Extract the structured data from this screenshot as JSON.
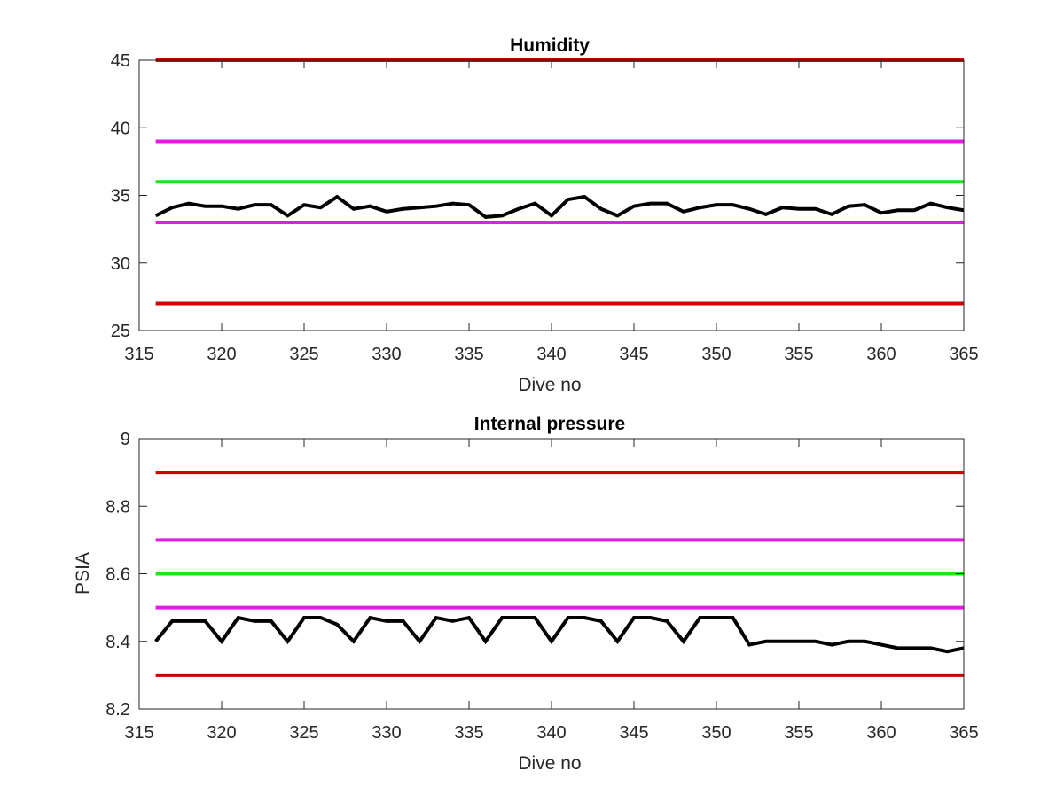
{
  "chart_data": [
    {
      "type": "line",
      "title": "Humidity",
      "xlabel": "Dive no",
      "ylabel": "",
      "xlim": [
        316,
        365
      ],
      "ylim": [
        25,
        45
      ],
      "xticks": [
        315,
        320,
        325,
        330,
        335,
        340,
        345,
        350,
        355,
        360,
        365
      ],
      "yticks": [
        25,
        30,
        35,
        40,
        45
      ],
      "grid": false,
      "x": [
        316,
        317,
        318,
        319,
        320,
        321,
        322,
        323,
        324,
        325,
        326,
        327,
        328,
        329,
        330,
        331,
        332,
        333,
        334,
        335,
        336,
        337,
        338,
        339,
        340,
        341,
        342,
        343,
        344,
        345,
        346,
        347,
        348,
        349,
        350,
        351,
        352,
        353,
        354,
        355,
        356,
        357,
        358,
        359,
        360,
        361,
        362,
        363,
        364,
        365
      ],
      "series": [
        {
          "color": "#000000",
          "values": [
            33.5,
            34.1,
            34.4,
            34.2,
            34.2,
            34.0,
            34.3,
            34.3,
            33.5,
            34.3,
            34.1,
            34.9,
            34.0,
            34.2,
            33.8,
            34.0,
            34.1,
            34.2,
            34.4,
            34.3,
            33.4,
            33.5,
            34.0,
            34.4,
            33.5,
            34.7,
            34.9,
            34.0,
            33.5,
            34.2,
            34.4,
            34.4,
            33.8,
            34.1,
            34.3,
            34.3,
            34.0,
            33.6,
            34.1,
            34.0,
            34.0,
            33.6,
            34.2,
            34.3,
            33.7,
            33.9,
            33.9,
            34.4,
            34.1,
            33.9
          ]
        }
      ],
      "reference_lines": [
        {
          "value": 45,
          "color": "#cc0000"
        },
        {
          "value": 39,
          "color": "#e619e6"
        },
        {
          "value": 36,
          "color": "#1ae61a"
        },
        {
          "value": 33,
          "color": "#e619e6"
        },
        {
          "value": 27,
          "color": "#cc0000"
        }
      ]
    },
    {
      "type": "line",
      "title": "Internal pressure",
      "xlabel": "Dive no",
      "ylabel": "PSIA",
      "xlim": [
        316,
        365
      ],
      "ylim": [
        8.2,
        9
      ],
      "xticks": [
        315,
        320,
        325,
        330,
        335,
        340,
        345,
        350,
        355,
        360,
        365
      ],
      "yticks": [
        8.2,
        8.4,
        8.6,
        8.8,
        9
      ],
      "grid": false,
      "x": [
        316,
        317,
        318,
        319,
        320,
        321,
        322,
        323,
        324,
        325,
        326,
        327,
        328,
        329,
        330,
        331,
        332,
        333,
        334,
        335,
        336,
        337,
        338,
        339,
        340,
        341,
        342,
        343,
        344,
        345,
        346,
        347,
        348,
        349,
        350,
        351,
        352,
        353,
        354,
        355,
        356,
        357,
        358,
        359,
        360,
        361,
        362,
        363,
        364,
        365
      ],
      "series": [
        {
          "color": "#000000",
          "values": [
            8.4,
            8.46,
            8.46,
            8.46,
            8.4,
            8.47,
            8.46,
            8.46,
            8.4,
            8.47,
            8.47,
            8.45,
            8.4,
            8.47,
            8.46,
            8.46,
            8.4,
            8.47,
            8.46,
            8.47,
            8.4,
            8.47,
            8.47,
            8.47,
            8.4,
            8.47,
            8.47,
            8.46,
            8.4,
            8.47,
            8.47,
            8.46,
            8.4,
            8.47,
            8.47,
            8.47,
            8.39,
            8.4,
            8.4,
            8.4,
            8.4,
            8.39,
            8.4,
            8.4,
            8.39,
            8.38,
            8.38,
            8.38,
            8.37,
            8.38
          ]
        }
      ],
      "reference_lines": [
        {
          "value": 8.9,
          "color": "#cc0000"
        },
        {
          "value": 8.7,
          "color": "#e619e6"
        },
        {
          "value": 8.6,
          "color": "#1ae61a"
        },
        {
          "value": 8.5,
          "color": "#e619e6"
        },
        {
          "value": 8.3,
          "color": "#cc0000"
        }
      ]
    }
  ]
}
